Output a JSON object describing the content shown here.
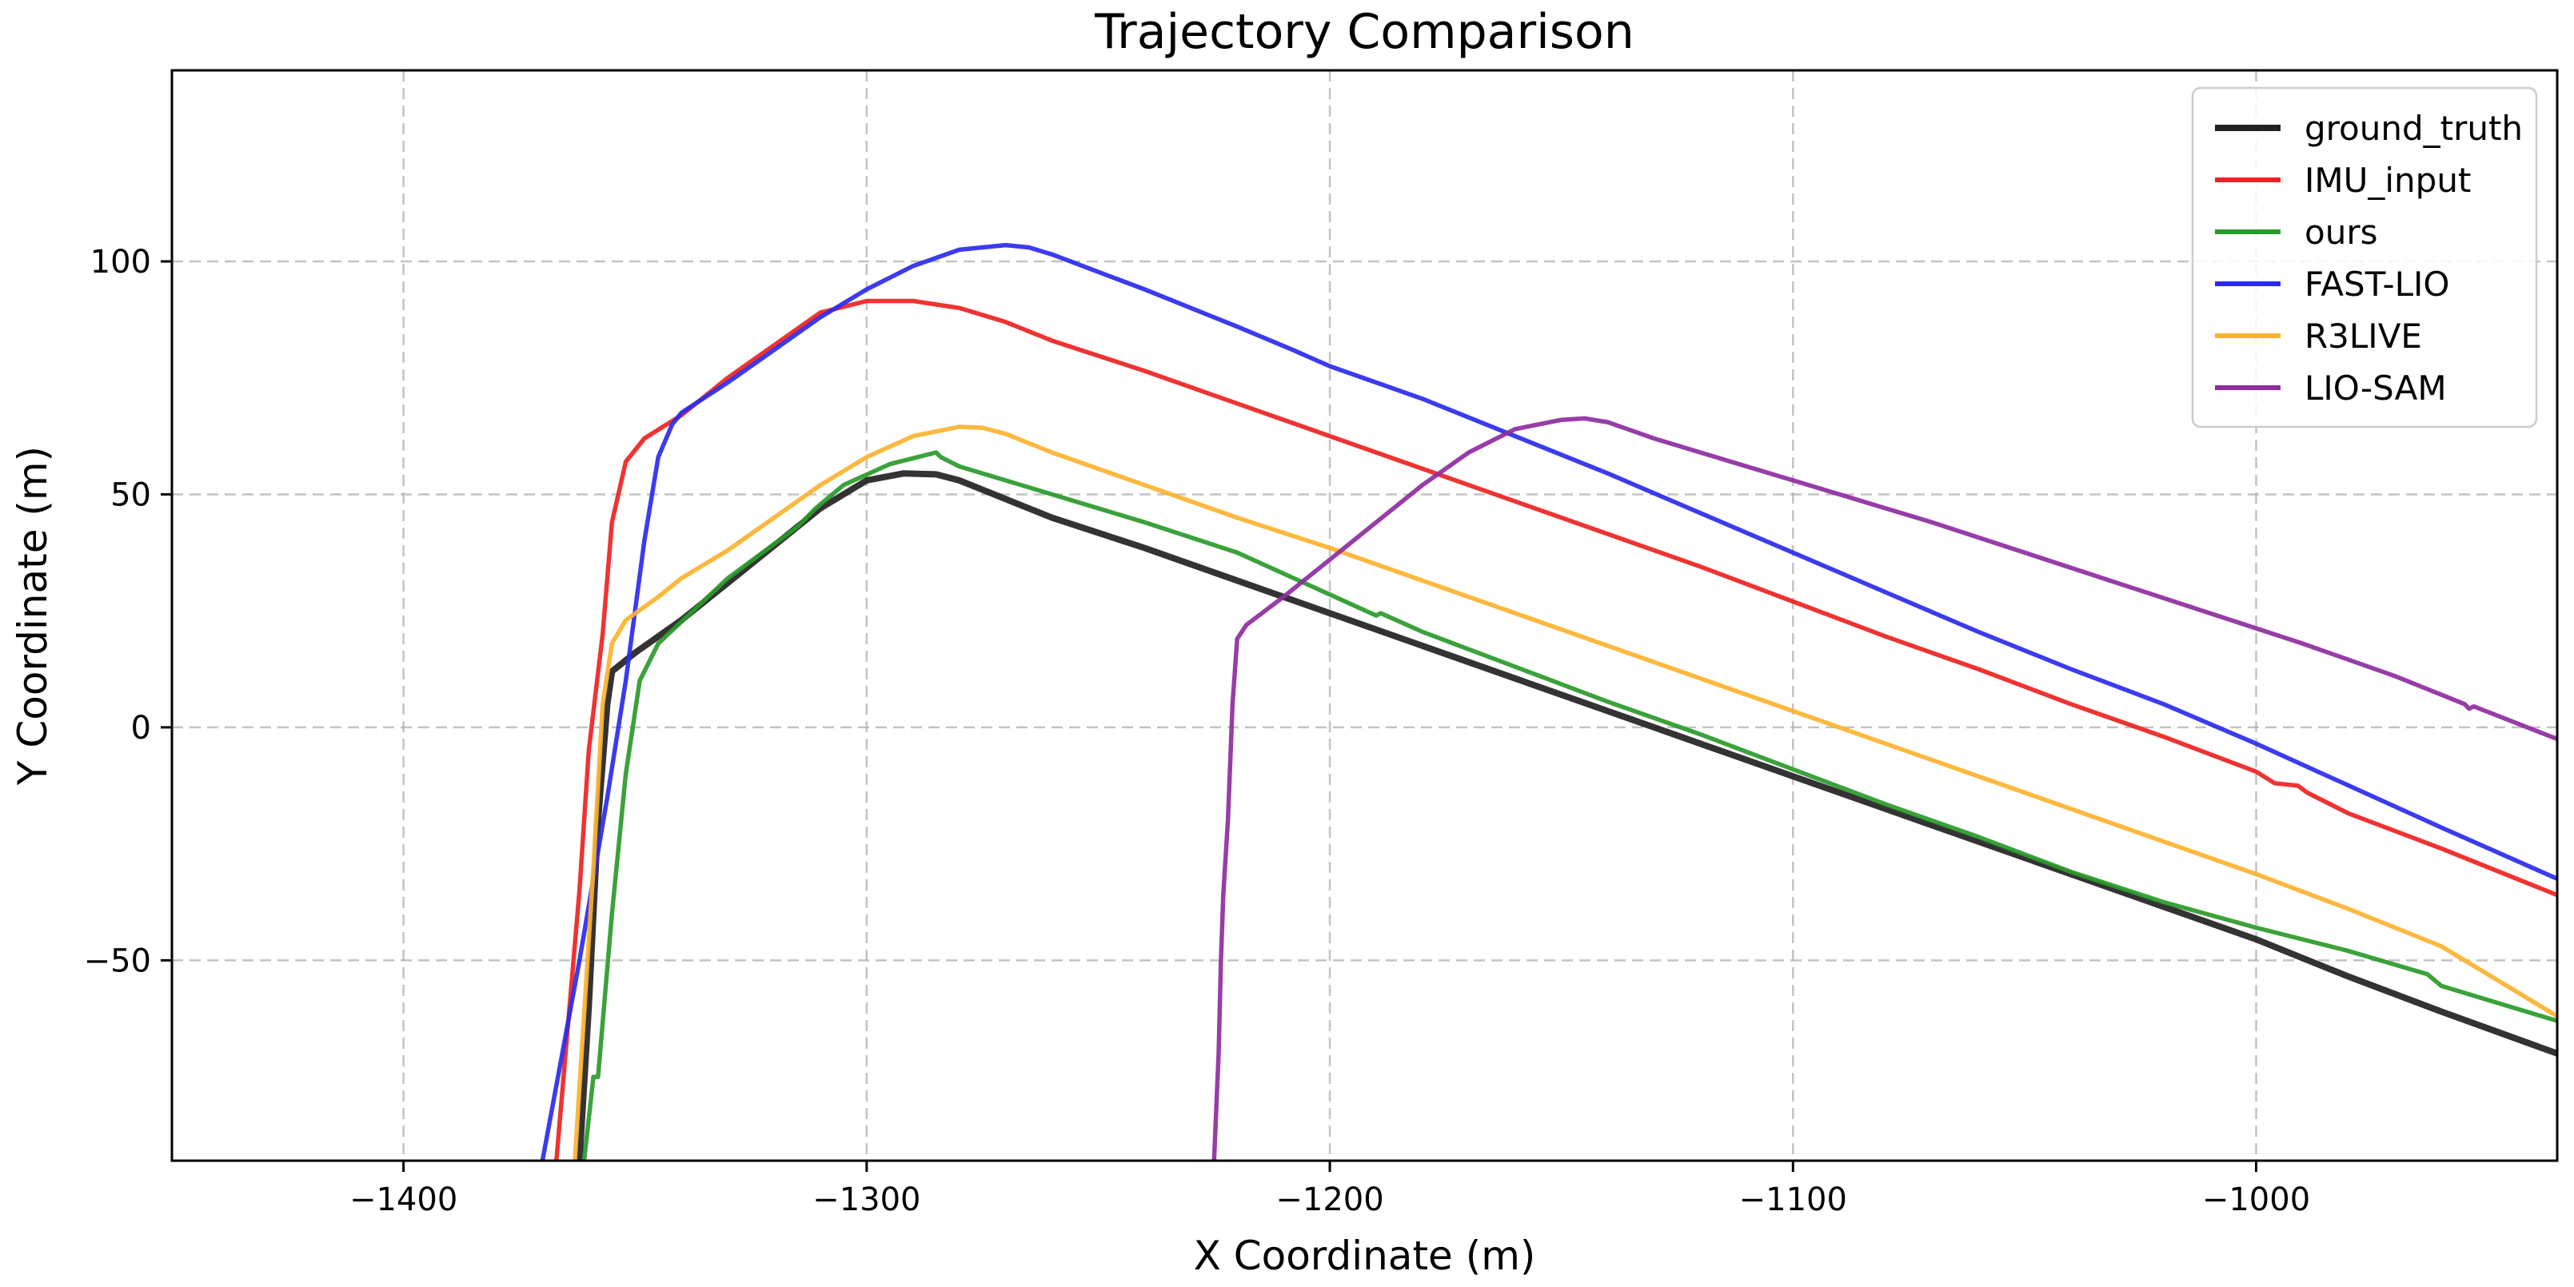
{
  "chart_data": {
    "type": "line",
    "title": "Trajectory Comparison",
    "xlabel": "X Coordinate (m)",
    "ylabel": "Y Coordinate (m)",
    "xlim": [
      -1450,
      -935
    ],
    "ylim": [
      -93,
      141
    ],
    "xticks": [
      -1400,
      -1300,
      -1200,
      -1100,
      -1000
    ],
    "yticks": [
      -50,
      0,
      50,
      100
    ],
    "xtick_labels": [
      "−1400",
      "−1300",
      "−1200",
      "−1100",
      "−1000"
    ],
    "ytick_labels": [
      "−50",
      "0",
      "50",
      "100"
    ],
    "grid": true,
    "legend_position": "top-right",
    "series": [
      {
        "name": "ground_truth",
        "color": "#222222",
        "x": [
          -1362,
          -1360,
          -1358,
          -1356,
          -1355,
          -1350,
          -1340,
          -1330,
          -1320,
          -1310,
          -1300,
          -1292,
          -1285,
          -1280,
          -1275,
          -1260,
          -1240,
          -1220,
          -1200,
          -1180,
          -1160,
          -1140,
          -1120,
          -1100,
          -1080,
          -1060,
          -1040,
          -1020,
          -1000,
          -980,
          -960,
          -935
        ],
        "y": [
          -93,
          -60,
          -20,
          5,
          12,
          16,
          23,
          31,
          39,
          47,
          53,
          54.5,
          54.3,
          53,
          51,
          45,
          38.5,
          31.5,
          24.5,
          17.5,
          10.5,
          3.5,
          -3.5,
          -10.5,
          -17.5,
          -24.5,
          -31.5,
          -38.5,
          -45.5,
          -53.5,
          -61,
          -70
        ]
      },
      {
        "name": "IMU_input",
        "color": "#ee2222",
        "x": [
          -1367,
          -1362,
          -1360,
          -1357,
          -1355,
          -1352,
          -1348,
          -1340,
          -1330,
          -1320,
          -1310,
          -1300,
          -1290,
          -1280,
          -1270,
          -1260,
          -1240,
          -1220,
          -1200,
          -1180,
          -1160,
          -1140,
          -1120,
          -1100,
          -1080,
          -1060,
          -1040,
          -1020,
          -1000,
          -996,
          -991,
          -989,
          -980,
          -960,
          -935
        ],
        "y": [
          -93,
          -35,
          -5,
          20,
          44,
          57,
          62,
          67,
          75,
          82,
          89,
          91.5,
          91.5,
          90,
          87,
          83,
          76.5,
          69.5,
          62.5,
          55.5,
          48.5,
          41.5,
          34.5,
          27,
          19.5,
          12.5,
          5,
          -2,
          -9.5,
          -12,
          -12.5,
          -14,
          -18.5,
          -26,
          -36
        ]
      },
      {
        "name": "ours",
        "color": "#2a9a2a",
        "x": [
          -1361,
          -1359,
          -1358,
          -1355,
          -1352,
          -1349,
          -1345,
          -1330,
          -1315,
          -1311,
          -1305,
          -1295,
          -1285,
          -1284,
          -1280,
          -1260,
          -1240,
          -1220,
          -1200,
          -1190,
          -1189,
          -1180,
          -1160,
          -1140,
          -1120,
          -1100,
          -1080,
          -1060,
          -1040,
          -1020,
          -1000,
          -980,
          -963,
          -960,
          -950,
          -935
        ],
        "y": [
          -93,
          -75,
          -75,
          -40,
          -10,
          10,
          18,
          32,
          43,
          47,
          52,
          56.5,
          59,
          58,
          56,
          50,
          44,
          37.5,
          28.5,
          24,
          24.5,
          20.5,
          13,
          5.5,
          -1.5,
          -9,
          -16.5,
          -23.5,
          -31,
          -37.5,
          -43,
          -48,
          -53,
          -55.5,
          -58.5,
          -63
        ]
      },
      {
        "name": "FAST-LIO",
        "color": "#2a2aee",
        "x": [
          -1370,
          -1362,
          -1356,
          -1352,
          -1348,
          -1345,
          -1342,
          -1340,
          -1330,
          -1320,
          -1310,
          -1300,
          -1290,
          -1280,
          -1270,
          -1265,
          -1260,
          -1240,
          -1220,
          -1208,
          -1200,
          -1180,
          -1160,
          -1140,
          -1120,
          -1100,
          -1080,
          -1060,
          -1040,
          -1020,
          -1000,
          -980,
          -960,
          -935
        ],
        "y": [
          -93,
          -50,
          -15,
          10,
          40,
          58,
          65,
          67.5,
          74,
          81,
          88,
          94,
          99,
          102.5,
          103.5,
          103,
          101.5,
          94,
          86,
          81,
          77.5,
          70.5,
          62.5,
          54.5,
          46,
          37.5,
          29,
          20.5,
          12.5,
          5,
          -3.5,
          -12.5,
          -21.5,
          -32.5
        ]
      },
      {
        "name": "R3LIVE",
        "color": "#fdb22e",
        "x": [
          -1363,
          -1359,
          -1357,
          -1355,
          -1352,
          -1345,
          -1340,
          -1330,
          -1320,
          -1310,
          -1300,
          -1290,
          -1280,
          -1275,
          -1270,
          -1260,
          -1240,
          -1220,
          -1200,
          -1180,
          -1160,
          -1140,
          -1120,
          -1100,
          -1080,
          -1060,
          -1040,
          -1020,
          -1000,
          -980,
          -960,
          -935
        ],
        "y": [
          -93,
          -30,
          5,
          18,
          23,
          28,
          32,
          38,
          45,
          52,
          58,
          62.5,
          64.5,
          64.3,
          63,
          59,
          52,
          45,
          38.5,
          31.5,
          24.5,
          17.5,
          10.5,
          3.5,
          -3.5,
          -10.5,
          -17.5,
          -24.5,
          -31.5,
          -39,
          -47,
          -62
        ]
      },
      {
        "name": "LIO-SAM",
        "color": "#8e2d9f",
        "x": [
          -1225,
          -1224,
          -1223.5,
          -1223,
          -1222,
          -1221,
          -1220,
          -1218,
          -1210,
          -1200,
          -1190,
          -1180,
          -1170,
          -1160,
          -1150,
          -1145,
          -1140,
          -1130,
          -1110,
          -1090,
          -1070,
          -1050,
          -1030,
          -1010,
          -990,
          -970,
          -955,
          -954,
          -953,
          -935
        ],
        "y": [
          -93,
          -70,
          -50,
          -36,
          -20,
          5,
          19,
          22,
          28,
          36,
          44,
          52,
          59,
          64,
          66,
          66.3,
          65.5,
          62,
          56,
          50,
          44,
          37.5,
          31,
          24.5,
          18,
          11,
          5,
          4,
          4.5,
          -2.5
        ]
      }
    ]
  }
}
